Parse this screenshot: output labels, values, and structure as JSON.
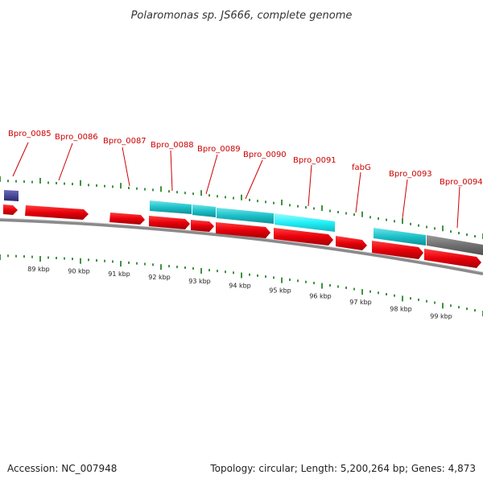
{
  "title": "Polaromonas sp. JS666, complete genome",
  "footer": {
    "accession": "Accession: NC_007948",
    "summary": "Topology: circular; Length: 5,200,264 bp; Genes: 4,873"
  },
  "colors": {
    "forward_cds": "#e8000a",
    "forward_cds_shade": "#a00006",
    "feature_cyan": "#1cc0c8",
    "feature_cyan_bright": "#22f0f8",
    "feature_navy": "#3a3a8a",
    "feature_gray": "#707070",
    "backbone": "#8a8a8a",
    "tick": "#117711",
    "label_red": "#cc0000"
  },
  "gene_labels": [
    "Bpro_0085",
    "Bpro_0086",
    "Bpro_0087",
    "Bpro_0088",
    "Bpro_0089",
    "Bpro_0090",
    "Bpro_0091",
    "fabG",
    "Bpro_0093",
    "Bpro_0094"
  ],
  "axis_ticks": [
    "89 kbp",
    "90 kbp",
    "91 kbp",
    "92 kbp",
    "93 kbp",
    "94 kbp",
    "95 kbp",
    "96 kbp",
    "97 kbp",
    "98 kbp",
    "99 kbp"
  ]
}
